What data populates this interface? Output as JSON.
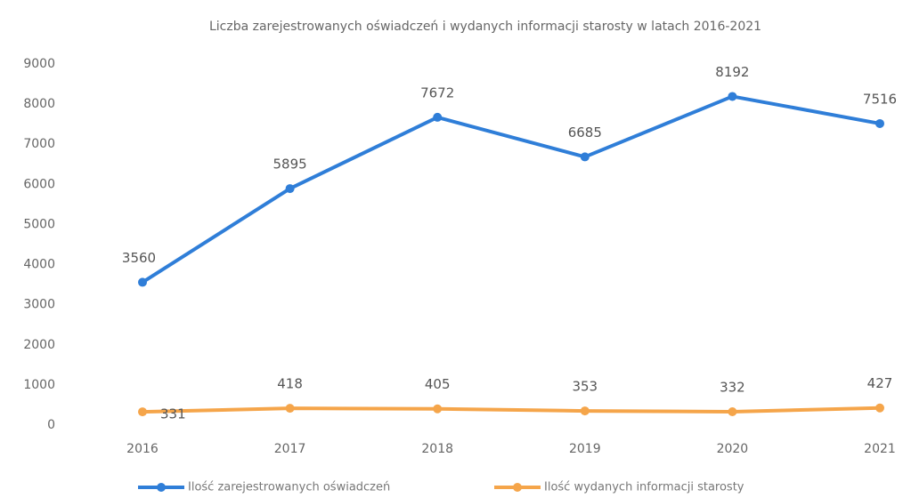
{
  "chart_data": {
    "type": "line",
    "title": "Liczba zarejestrowanych oświadczeń i wydanych informacji starosty w latach 2016-2021",
    "categories": [
      "2016",
      "2017",
      "2018",
      "2019",
      "2020",
      "2021"
    ],
    "series": [
      {
        "name": "Ilość zarejestrowanych oświadczeń",
        "color": "#2f7ed8",
        "values": [
          3560,
          5895,
          7672,
          6685,
          8192,
          7516
        ]
      },
      {
        "name": "Ilość wydanych informacji starosty",
        "color": "#f5a54a",
        "values": [
          331,
          418,
          405,
          353,
          332,
          427
        ]
      }
    ],
    "ylim": [
      0,
      9000
    ],
    "yticks": [
      0,
      1000,
      2000,
      3000,
      4000,
      5000,
      6000,
      7000,
      8000,
      9000
    ],
    "grid": false,
    "legend": "bottom"
  }
}
